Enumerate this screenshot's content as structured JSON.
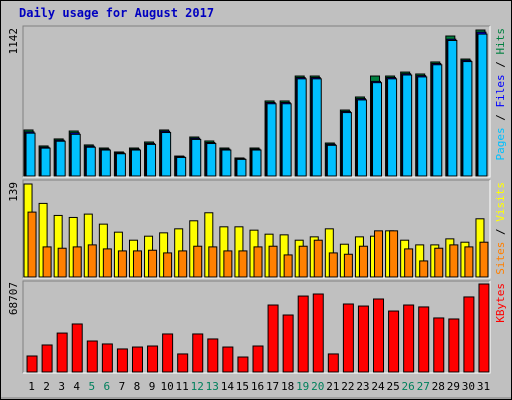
{
  "chart_data": [
    {
      "type": "bar",
      "title": "Daily usage for August 2017",
      "legend_separator": " / ",
      "ylim": [
        0,
        1142
      ],
      "yticks": [
        1142
      ],
      "series": [
        {
          "name": "Hits",
          "color": "#008040",
          "values": [
            360,
            235,
            290,
            352,
            243,
            219,
            188,
            219,
            266,
            360,
            156,
            305,
            274,
            219,
            141,
            219,
            587,
            587,
            782,
            782,
            258,
            516,
            618,
            782,
            782,
            813,
            798,
            892,
            1095,
            915,
            1142
          ]
        },
        {
          "name": "Files",
          "color": "#0000ff",
          "values": [
            345,
            225,
            280,
            338,
            233,
            210,
            180,
            210,
            255,
            350,
            150,
            295,
            262,
            210,
            135,
            210,
            575,
            575,
            770,
            770,
            248,
            505,
            605,
            740,
            770,
            800,
            785,
            880,
            1070,
            905,
            1125
          ]
        },
        {
          "name": "Pages",
          "color": "#00c0ff",
          "values": [
            335,
            218,
            272,
            326,
            225,
            203,
            174,
            203,
            247,
            340,
            145,
            286,
            254,
            203,
            130,
            203,
            565,
            565,
            760,
            760,
            240,
            496,
            595,
            730,
            760,
            790,
            775,
            870,
            1060,
            895,
            1110
          ]
        }
      ]
    },
    {
      "type": "bar",
      "ylim": [
        0,
        139
      ],
      "yticks": [
        139
      ],
      "series": [
        {
          "name": "Visits",
          "color": "#ffff00",
          "values": [
            139,
            110,
            92,
            89,
            94,
            79,
            67,
            55,
            61,
            66,
            72,
            84,
            96,
            75,
            75,
            70,
            64,
            63,
            55,
            60,
            72,
            49,
            60,
            61,
            69,
            55,
            48,
            48,
            57,
            52,
            87
          ]
        },
        {
          "name": "Sites",
          "color": "#ff8000",
          "values": [
            97,
            45,
            43,
            45,
            48,
            42,
            39,
            39,
            40,
            36,
            39,
            46,
            45,
            39,
            39,
            45,
            46,
            33,
            46,
            55,
            36,
            34,
            46,
            69,
            69,
            42,
            24,
            43,
            48,
            45,
            52
          ]
        }
      ]
    },
    {
      "type": "bar",
      "ylim": [
        0,
        68707
      ],
      "yticks": [
        68707
      ],
      "categories": [
        1,
        2,
        3,
        4,
        5,
        6,
        7,
        8,
        9,
        10,
        11,
        12,
        13,
        14,
        15,
        16,
        17,
        18,
        19,
        20,
        21,
        22,
        23,
        24,
        25,
        26,
        27,
        28,
        29,
        30,
        31
      ],
      "category_colors": [
        "#000000",
        "#000000",
        "#000000",
        "#000000",
        "#00805c",
        "#00805c",
        "#000000",
        "#000000",
        "#000000",
        "#000000",
        "#000000",
        "#00805c",
        "#00805c",
        "#000000",
        "#000000",
        "#000000",
        "#000000",
        "#000000",
        "#00805c",
        "#00805c",
        "#000000",
        "#000000",
        "#000000",
        "#000000",
        "#000000",
        "#00805c",
        "#00805c",
        "#000000",
        "#000000",
        "#000000",
        "#000000"
      ],
      "series": [
        {
          "name": "KBytes",
          "color": "#ff0000",
          "values": [
            12500,
            21100,
            30400,
            37500,
            24200,
            21900,
            18000,
            19500,
            20300,
            29700,
            14100,
            29700,
            25800,
            19500,
            11700,
            20300,
            52300,
            44500,
            59300,
            60900,
            14100,
            53100,
            51500,
            57000,
            47600,
            52300,
            50800,
            42200,
            41400,
            58600,
            68707
          ]
        }
      ]
    }
  ]
}
